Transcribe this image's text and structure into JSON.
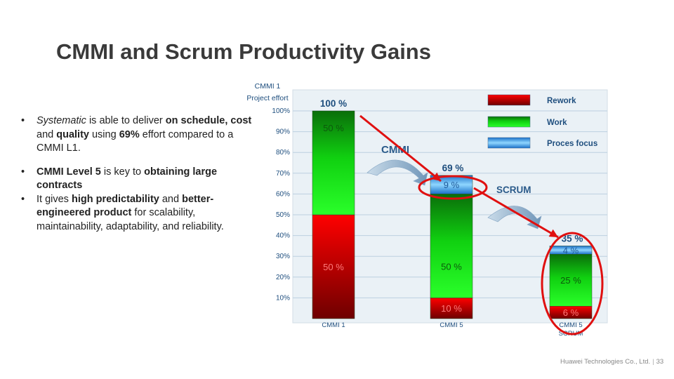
{
  "slide": {
    "title": "CMMI and Scrum Productivity Gains",
    "bullets": [
      {
        "segments": [
          {
            "t": "Systematic",
            "s": "i"
          },
          {
            "t": " is able to deliver ",
            "s": ""
          },
          {
            "t": "on schedule, cost",
            "s": "b"
          },
          {
            "t": " and ",
            "s": ""
          },
          {
            "t": "quality",
            "s": "b"
          },
          {
            "t": " using ",
            "s": ""
          },
          {
            "t": "69%",
            "s": "b"
          },
          {
            "t": " effort compared to a CMMI L1.",
            "s": ""
          }
        ]
      },
      {
        "segments": [
          {
            "t": "CMMI Level 5",
            "s": "b"
          },
          {
            "t": " is key to ",
            "s": ""
          },
          {
            "t": "obtaining large contracts",
            "s": "b"
          }
        ]
      },
      {
        "segments": [
          {
            "t": "It gives ",
            "s": ""
          },
          {
            "t": "high predictability",
            "s": "b"
          },
          {
            "t": " and ",
            "s": ""
          },
          {
            "t": "better-engineered product",
            "s": "b"
          },
          {
            "t": " for scalability, maintainability, adaptability, and reliability.",
            "s": ""
          }
        ]
      }
    ],
    "bullet_symbol": "•",
    "footer": {
      "company": "Huawei Technologies Co., Ltd.",
      "separator": "|",
      "page": "33"
    }
  },
  "chart_data": {
    "type": "bar",
    "stacked": true,
    "ylabel_lines": [
      "CMMI 1",
      "Project effort"
    ],
    "yticks": [
      "10%",
      "20%",
      "30%",
      "40%",
      "50%",
      "60%",
      "70%",
      "80%",
      "90%",
      "100%"
    ],
    "ylim": [
      0,
      100
    ],
    "grid": true,
    "categories": [
      [
        "CMMI 1"
      ],
      [
        "CMMI 5"
      ],
      [
        "CMMI 5",
        "SCRUM"
      ]
    ],
    "totals": [
      100,
      69,
      35
    ],
    "total_labels": [
      "100 %",
      "69 %",
      "35 %"
    ],
    "series": [
      {
        "name": "Rework",
        "values": [
          50,
          10,
          6
        ],
        "labels": [
          "50 %",
          "10 %",
          "6 %"
        ],
        "color": "#d80000"
      },
      {
        "name": "Work",
        "values": [
          50,
          50,
          25
        ],
        "labels": [
          "50 %",
          "50 %",
          "25 %"
        ],
        "color": "#00d000"
      },
      {
        "name": "Proces focus",
        "values": [
          0,
          9,
          4
        ],
        "labels": [
          "",
          "9 %",
          "4 %"
        ],
        "color": "#1ea0e8"
      }
    ],
    "legend_position": "top-right",
    "annotations": [
      {
        "text": "CMMI"
      },
      {
        "text": "SCRUM"
      }
    ],
    "highlight_color": "#e01010"
  }
}
